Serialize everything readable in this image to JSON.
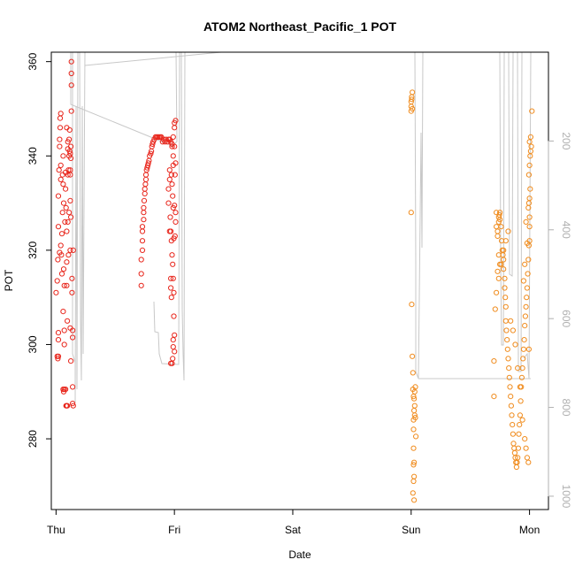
{
  "chart_data": {
    "type": "scatter",
    "title": "ATOM2 Northeast_Pacific_1 POT",
    "xlabel": "Date",
    "ylabel": "POT",
    "x_ticks": [
      "Thu",
      "Fri",
      "Sat",
      "Sun",
      "Mon"
    ],
    "x_range": [
      -0.04,
      4.16
    ],
    "ylim": [
      265,
      362
    ],
    "y_ticks": [
      280,
      300,
      320,
      340,
      360
    ],
    "y2_ticks": [
      200,
      400,
      600,
      800,
      1000
    ],
    "y2_range": [
      1030,
      0
    ],
    "colors": {
      "series_red": "#e8261c",
      "series_orange": "#f08c1e",
      "depth_line": "#c8c8c8",
      "axis": "#000000",
      "axis_right": "#b0b0b0"
    },
    "series": [
      {
        "color_key": "series_red",
        "points": [
          [
            0.0,
            311
          ],
          [
            0.01,
            313.5
          ],
          [
            0.015,
            318
          ],
          [
            0.02,
            325
          ],
          [
            0.02,
            331.5
          ],
          [
            0.025,
            337
          ],
          [
            0.03,
            342
          ],
          [
            0.03,
            343.5
          ],
          [
            0.035,
            346
          ],
          [
            0.035,
            348
          ],
          [
            0.04,
            349
          ],
          [
            0.04,
            338
          ],
          [
            0.04,
            335
          ],
          [
            0.02,
            301
          ],
          [
            0.02,
            302.5
          ],
          [
            0.01,
            297.5
          ],
          [
            0.015,
            297
          ],
          [
            0.02,
            297.5
          ],
          [
            0.03,
            319.5
          ],
          [
            0.04,
            321
          ],
          [
            0.045,
            319
          ],
          [
            0.05,
            315
          ],
          [
            0.05,
            323.5
          ],
          [
            0.055,
            328
          ],
          [
            0.055,
            336
          ],
          [
            0.06,
            340
          ],
          [
            0.06,
            334
          ],
          [
            0.065,
            330
          ],
          [
            0.065,
            316
          ],
          [
            0.06,
            307
          ],
          [
            0.07,
            312.5
          ],
          [
            0.07,
            303
          ],
          [
            0.07,
            300
          ],
          [
            0.06,
            290.5
          ],
          [
            0.065,
            290
          ],
          [
            0.07,
            290.5
          ],
          [
            0.08,
            290.5
          ],
          [
            0.075,
            326
          ],
          [
            0.08,
            336.5
          ],
          [
            0.08,
            333
          ],
          [
            0.085,
            329
          ],
          [
            0.09,
            324
          ],
          [
            0.09,
            317.5
          ],
          [
            0.09,
            312.5
          ],
          [
            0.095,
            305
          ],
          [
            0.085,
            287
          ],
          [
            0.09,
            287
          ],
          [
            0.095,
            287
          ],
          [
            0.1,
            326
          ],
          [
            0.1,
            336
          ],
          [
            0.1,
            341.5
          ],
          [
            0.1,
            343
          ],
          [
            0.105,
            337
          ],
          [
            0.11,
            340
          ],
          [
            0.11,
            343.5
          ],
          [
            0.115,
            345.5
          ],
          [
            0.12,
            337
          ],
          [
            0.12,
            336
          ],
          [
            0.12,
            330.5
          ],
          [
            0.12,
            320
          ],
          [
            0.12,
            303.5
          ],
          [
            0.125,
            296.5
          ],
          [
            0.125,
            327
          ],
          [
            0.13,
            349.5
          ],
          [
            0.13,
            355
          ],
          [
            0.13,
            357.5
          ],
          [
            0.13,
            360
          ],
          [
            0.11,
            328
          ],
          [
            0.105,
            319
          ],
          [
            0.135,
            314
          ],
          [
            0.135,
            311
          ],
          [
            0.14,
            303
          ],
          [
            0.14,
            301.5
          ],
          [
            0.14,
            291
          ],
          [
            0.14,
            287.5
          ],
          [
            0.145,
            287
          ],
          [
            0.145,
            320
          ],
          [
            0.115,
            341
          ],
          [
            0.12,
            340.5
          ],
          [
            0.125,
            342
          ],
          [
            0.125,
            339.5
          ],
          [
            0.09,
            346
          ]
        ]
      },
      {
        "color_key": "series_red",
        "points": [
          [
            0.72,
            312.5
          ],
          [
            0.72,
            315
          ],
          [
            0.72,
            318
          ],
          [
            0.73,
            320
          ],
          [
            0.73,
            322
          ],
          [
            0.73,
            324
          ],
          [
            0.73,
            325
          ],
          [
            0.74,
            326.5
          ],
          [
            0.74,
            328
          ],
          [
            0.74,
            329
          ],
          [
            0.745,
            330.5
          ],
          [
            0.75,
            332
          ],
          [
            0.75,
            333
          ],
          [
            0.755,
            334
          ],
          [
            0.76,
            335
          ],
          [
            0.76,
            336
          ],
          [
            0.765,
            337
          ],
          [
            0.77,
            337.5
          ],
          [
            0.775,
            338
          ],
          [
            0.78,
            338.5
          ],
          [
            0.785,
            339
          ],
          [
            0.79,
            340
          ],
          [
            0.8,
            340.5
          ],
          [
            0.805,
            341
          ],
          [
            0.81,
            342
          ],
          [
            0.815,
            342.5
          ],
          [
            0.82,
            343
          ],
          [
            0.83,
            343.5
          ],
          [
            0.84,
            344
          ],
          [
            0.85,
            344
          ],
          [
            0.86,
            344
          ],
          [
            0.87,
            344
          ],
          [
            0.88,
            344
          ],
          [
            0.89,
            344
          ],
          [
            0.9,
            343
          ],
          [
            0.91,
            343.5
          ],
          [
            0.92,
            343
          ],
          [
            0.93,
            343.5
          ],
          [
            0.94,
            343
          ],
          [
            0.95,
            343.5
          ],
          [
            0.96,
            343.5
          ],
          [
            0.97,
            343
          ],
          [
            0.98,
            342
          ],
          [
            0.99,
            344
          ],
          [
            1.0,
            346
          ],
          [
            1.0,
            347
          ],
          [
            1.01,
            347.5
          ],
          [
            0.98,
            342.5
          ],
          [
            0.99,
            340
          ],
          [
            0.99,
            338
          ],
          [
            0.975,
            336
          ],
          [
            0.98,
            334
          ],
          [
            0.985,
            331.5
          ],
          [
            0.99,
            329
          ],
          [
            0.965,
            327
          ],
          [
            0.97,
            324
          ],
          [
            0.975,
            322
          ],
          [
            0.98,
            319
          ],
          [
            0.985,
            317
          ],
          [
            0.99,
            314
          ],
          [
            0.995,
            311
          ],
          [
            0.995,
            306
          ],
          [
            1.0,
            302
          ],
          [
            0.99,
            301
          ],
          [
            0.99,
            299.5
          ],
          [
            0.985,
            297
          ],
          [
            0.98,
            296
          ],
          [
            0.97,
            296
          ],
          [
            1.0,
            298.5
          ],
          [
            0.995,
            322.5
          ],
          [
            1.005,
            323
          ],
          [
            1.01,
            326
          ],
          [
            1.01,
            328
          ],
          [
            1.0,
            329.5
          ],
          [
            1.005,
            336
          ],
          [
            1.01,
            338.5
          ],
          [
            1.0,
            342
          ],
          [
            0.96,
            324
          ],
          [
            0.95,
            330
          ],
          [
            0.95,
            333
          ],
          [
            0.96,
            335
          ],
          [
            0.96,
            337
          ],
          [
            0.97,
            314
          ],
          [
            0.975,
            310
          ],
          [
            0.97,
            312
          ]
        ]
      },
      {
        "color_key": "series_orange",
        "points": [
          [
            3.0,
            349.5
          ],
          [
            3.0,
            350.5
          ],
          [
            3.0,
            351.5
          ],
          [
            3.005,
            352
          ],
          [
            3.005,
            352.5
          ],
          [
            3.01,
            353.5
          ],
          [
            3.01,
            350
          ],
          [
            3.0,
            328
          ],
          [
            3.005,
            308.5
          ],
          [
            3.01,
            297.5
          ],
          [
            3.015,
            294
          ],
          [
            3.015,
            290.5
          ],
          [
            3.02,
            289
          ],
          [
            3.025,
            288.5
          ],
          [
            3.03,
            290
          ],
          [
            3.035,
            291
          ],
          [
            3.03,
            287
          ],
          [
            3.025,
            286
          ],
          [
            3.02,
            284
          ],
          [
            3.02,
            282
          ],
          [
            3.02,
            278
          ],
          [
            3.025,
            275
          ],
          [
            3.02,
            274.5
          ],
          [
            3.025,
            272
          ],
          [
            3.02,
            271
          ],
          [
            3.015,
            268.5
          ],
          [
            3.025,
            267
          ],
          [
            3.04,
            280.5
          ],
          [
            3.03,
            285
          ],
          [
            3.035,
            284.5
          ]
        ]
      },
      {
        "color_key": "series_orange",
        "points": [
          [
            3.72,
            328
          ],
          [
            3.72,
            325
          ],
          [
            3.73,
            324
          ],
          [
            3.73,
            323
          ],
          [
            3.74,
            326
          ],
          [
            3.74,
            327
          ],
          [
            3.745,
            327.5
          ],
          [
            3.75,
            328
          ],
          [
            3.75,
            326.5
          ],
          [
            3.76,
            325
          ],
          [
            3.765,
            322
          ],
          [
            3.77,
            320
          ],
          [
            3.775,
            319
          ],
          [
            3.78,
            318
          ],
          [
            3.78,
            316
          ],
          [
            3.79,
            314
          ],
          [
            3.79,
            312
          ],
          [
            3.795,
            310
          ],
          [
            3.8,
            308
          ],
          [
            3.8,
            305
          ],
          [
            3.805,
            303
          ],
          [
            3.81,
            301
          ],
          [
            3.815,
            299
          ],
          [
            3.82,
            297
          ],
          [
            3.825,
            295
          ],
          [
            3.83,
            293
          ],
          [
            3.835,
            291
          ],
          [
            3.84,
            289
          ],
          [
            3.845,
            287
          ],
          [
            3.85,
            285
          ],
          [
            3.855,
            283
          ],
          [
            3.86,
            281
          ],
          [
            3.865,
            279
          ],
          [
            3.87,
            278
          ],
          [
            3.875,
            277
          ],
          [
            3.88,
            276
          ],
          [
            3.885,
            275
          ],
          [
            3.89,
            274
          ],
          [
            3.895,
            275
          ],
          [
            3.9,
            276
          ],
          [
            3.905,
            278
          ],
          [
            3.91,
            281
          ],
          [
            3.915,
            283
          ],
          [
            3.92,
            285
          ],
          [
            3.925,
            288
          ],
          [
            3.93,
            291
          ],
          [
            3.935,
            293
          ],
          [
            3.94,
            295
          ],
          [
            3.945,
            297
          ],
          [
            3.95,
            299
          ],
          [
            3.955,
            301
          ],
          [
            3.96,
            304
          ],
          [
            3.965,
            306
          ],
          [
            3.97,
            308
          ],
          [
            3.975,
            310
          ],
          [
            3.98,
            312
          ],
          [
            3.985,
            315
          ],
          [
            3.99,
            318
          ],
          [
            3.995,
            321
          ],
          [
            4.0,
            322
          ],
          [
            4.0,
            325
          ],
          [
            4.0,
            327
          ],
          [
            3.99,
            329
          ],
          [
            3.995,
            330
          ],
          [
            4.0,
            331
          ],
          [
            4.005,
            333
          ],
          [
            3.995,
            336
          ],
          [
            4.0,
            338
          ],
          [
            4.005,
            340
          ],
          [
            4.01,
            341
          ],
          [
            4.015,
            342
          ],
          [
            4.0,
            343
          ],
          [
            4.01,
            344
          ],
          [
            4.02,
            349.5
          ],
          [
            3.98,
            321.5
          ],
          [
            3.97,
            326
          ],
          [
            3.96,
            317
          ],
          [
            3.95,
            313.5
          ],
          [
            3.74,
            319
          ],
          [
            3.75,
            317
          ],
          [
            3.73,
            315.5
          ],
          [
            3.72,
            311
          ],
          [
            3.71,
            307.5
          ],
          [
            3.7,
            296.5
          ],
          [
            3.7,
            289
          ],
          [
            3.74,
            314
          ],
          [
            3.76,
            317
          ],
          [
            3.78,
            320
          ],
          [
            3.8,
            322
          ],
          [
            3.82,
            324
          ],
          [
            3.84,
            305
          ],
          [
            3.86,
            303
          ],
          [
            3.88,
            300
          ],
          [
            3.9,
            295
          ],
          [
            3.92,
            291
          ],
          [
            3.94,
            284
          ],
          [
            3.96,
            280
          ],
          [
            3.97,
            278
          ],
          [
            3.98,
            276
          ],
          [
            3.99,
            275
          ],
          [
            3.995,
            299
          ]
        ]
      }
    ]
  }
}
